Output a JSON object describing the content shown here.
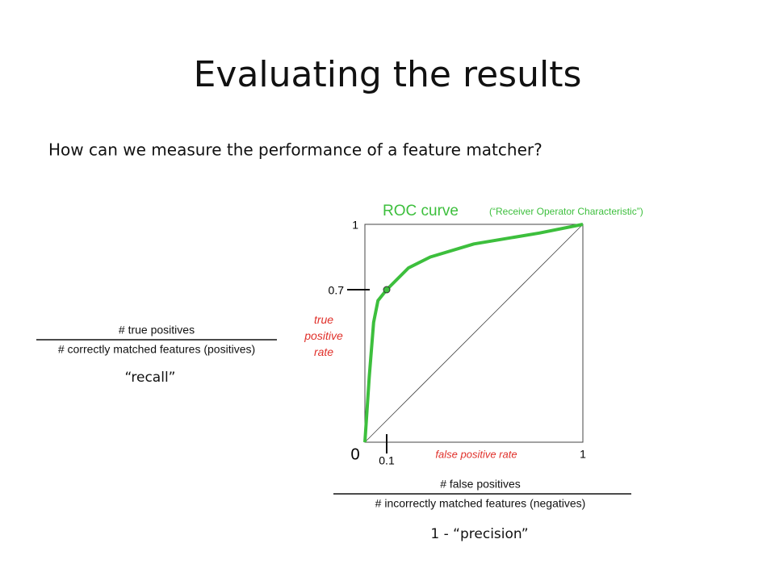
{
  "slide": {
    "title": "Evaluating the results",
    "subtitle": "How can we measure the performance of a feature matcher?",
    "recall_numerator": "# true positives",
    "recall_denominator": "# correctly matched features (positives)",
    "recall_label": "“recall”",
    "fpr_numerator": "# false positives",
    "fpr_denominator": "# incorrectly matched features (negatives)",
    "fpr_label": "1 - “precision”"
  },
  "chart_data": {
    "type": "line",
    "title": "ROC curve",
    "subtitle": "(“Receiver Operator Characteristic”)",
    "xlabel": "false positive rate",
    "ylabel": "true positive rate",
    "x": [
      0,
      0.02,
      0.04,
      0.06,
      0.1,
      0.2,
      0.3,
      0.5,
      0.8,
      1
    ],
    "values": [
      0,
      0.3,
      0.55,
      0.65,
      0.7,
      0.8,
      0.85,
      0.91,
      0.96,
      1
    ],
    "color": "#3dbf3d",
    "label_color": "#e0302a",
    "point_x": 0.1,
    "point_y": 0.7,
    "xlim": [
      0,
      1
    ],
    "ylim": [
      0,
      1
    ],
    "xticks": [
      0,
      0.1,
      1
    ],
    "yticks": [
      0.7,
      1
    ]
  }
}
